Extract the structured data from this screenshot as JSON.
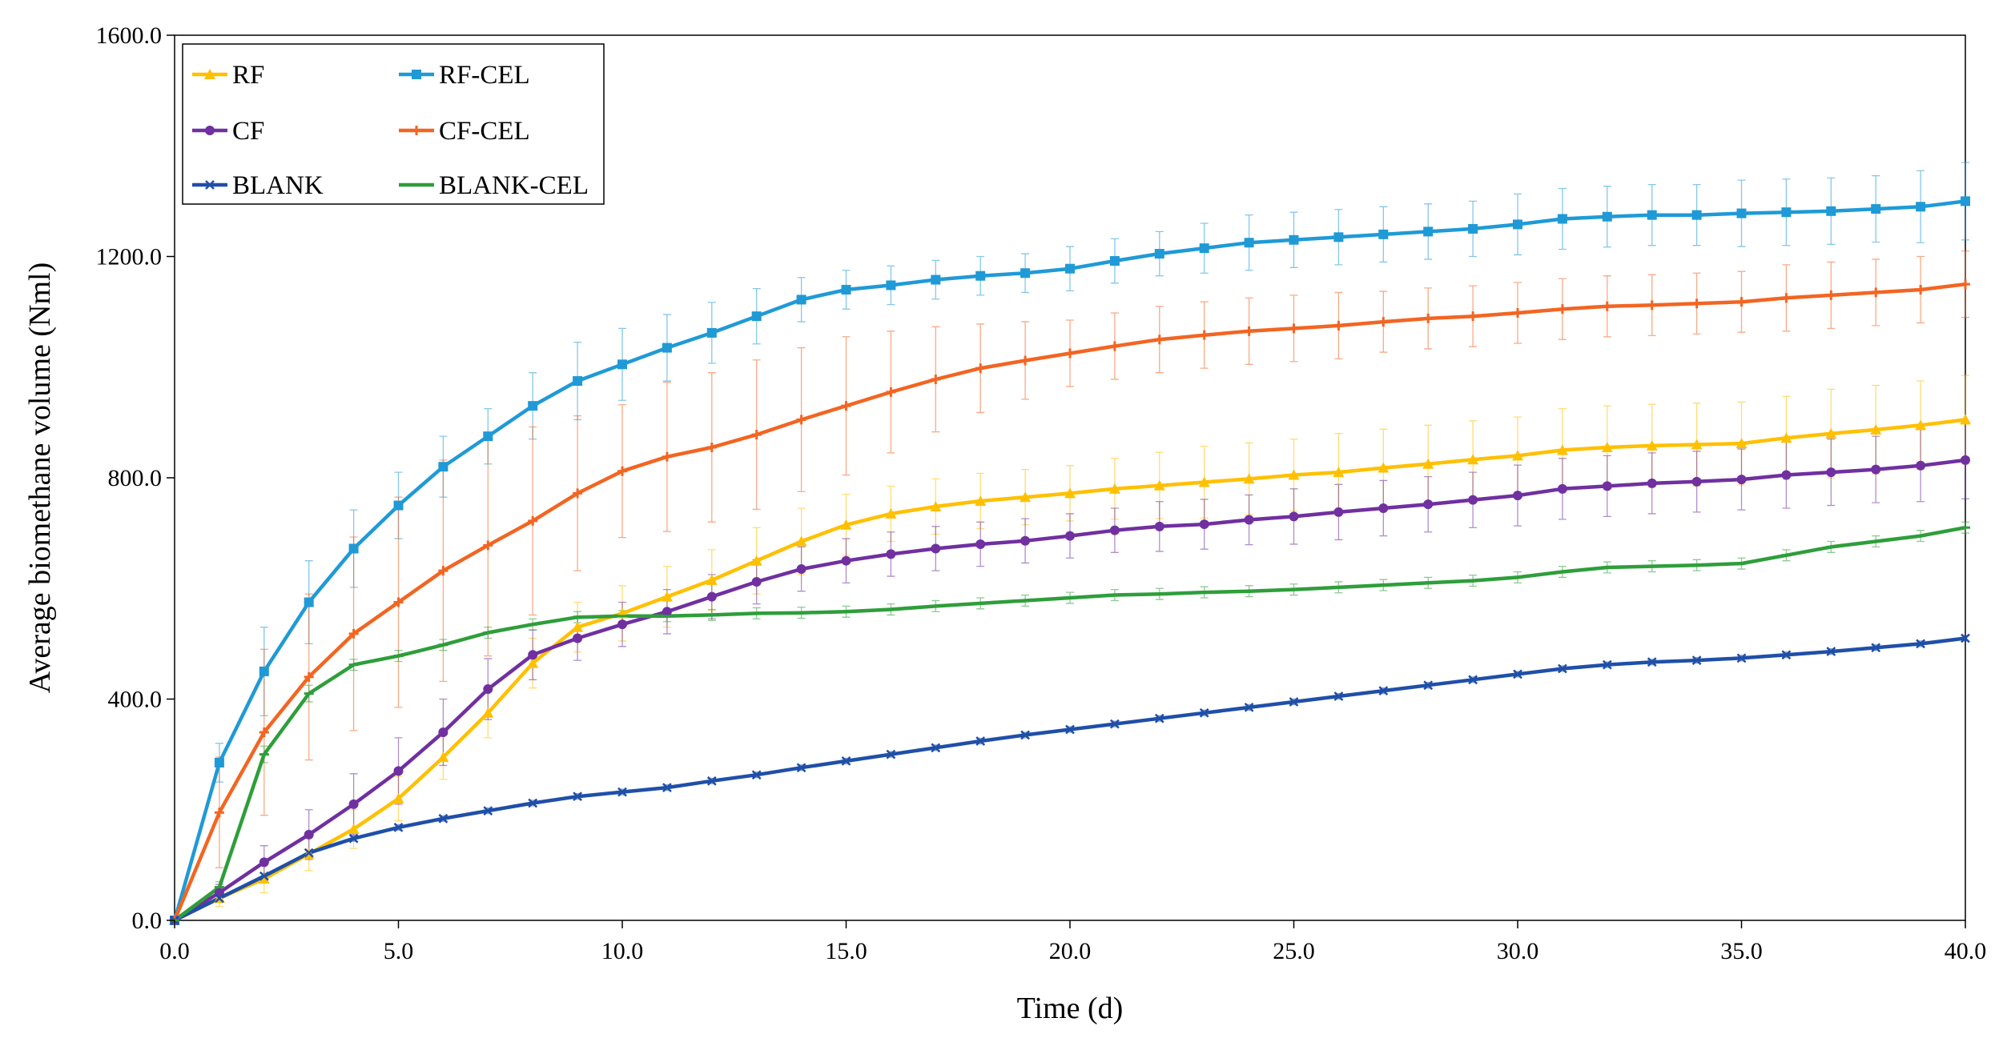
{
  "chart_data": {
    "type": "line",
    "title": "",
    "xlabel": "Time (d)",
    "ylabel": "Average biomethane volume (Nml)",
    "xlim": [
      0,
      40
    ],
    "ylim": [
      0,
      1600
    ],
    "xticks": [
      0,
      5,
      10,
      15,
      20,
      25,
      30,
      35,
      40
    ],
    "yticks": [
      0,
      400,
      800,
      1200,
      1600
    ],
    "xtick_labels": [
      "0.0",
      "5.0",
      "10.0",
      "15.0",
      "20.0",
      "25.0",
      "30.0",
      "35.0",
      "40.0"
    ],
    "ytick_labels": [
      "0.0",
      "400.0",
      "800.0",
      "1200.0",
      "1600.0"
    ],
    "grid": false,
    "legend_position": "top-left",
    "x": [
      0,
      1,
      2,
      3,
      4,
      5,
      6,
      7,
      8,
      9,
      10,
      11,
      12,
      13,
      14,
      15,
      16,
      17,
      18,
      19,
      20,
      21,
      22,
      23,
      24,
      25,
      26,
      27,
      28,
      29,
      30,
      31,
      32,
      33,
      34,
      35,
      36,
      37,
      38,
      39,
      40
    ],
    "series": [
      {
        "name": "RF",
        "color": "#FFC000",
        "marker": "triangle",
        "values": [
          0,
          40,
          75,
          120,
          165,
          220,
          295,
          375,
          465,
          530,
          555,
          585,
          615,
          650,
          685,
          715,
          735,
          748,
          758,
          765,
          772,
          780,
          786,
          792,
          798,
          805,
          810,
          818,
          825,
          833,
          840,
          850,
          855,
          858,
          860,
          862,
          872,
          880,
          887,
          895,
          905
        ],
        "errors": [
          0,
          15,
          25,
          30,
          35,
          40,
          40,
          45,
          45,
          45,
          50,
          55,
          55,
          60,
          60,
          55,
          50,
          50,
          50,
          50,
          50,
          55,
          60,
          65,
          65,
          65,
          70,
          70,
          70,
          70,
          70,
          75,
          75,
          75,
          75,
          75,
          75,
          80,
          80,
          80,
          80
        ]
      },
      {
        "name": "RF-CEL",
        "color": "#1F9AD6",
        "marker": "square",
        "values": [
          0,
          285,
          450,
          575,
          672,
          750,
          820,
          875,
          930,
          975,
          1005,
          1035,
          1062,
          1092,
          1122,
          1140,
          1148,
          1158,
          1165,
          1170,
          1178,
          1192,
          1205,
          1215,
          1225,
          1230,
          1235,
          1240,
          1245,
          1250,
          1258,
          1268,
          1272,
          1275,
          1275,
          1278,
          1280,
          1282,
          1286,
          1290,
          1300
        ],
        "errors": [
          0,
          35,
          80,
          75,
          70,
          60,
          55,
          50,
          60,
          70,
          65,
          60,
          55,
          50,
          40,
          35,
          35,
          35,
          35,
          35,
          40,
          40,
          40,
          45,
          50,
          50,
          50,
          50,
          50,
          50,
          55,
          55,
          55,
          55,
          55,
          60,
          60,
          60,
          60,
          65,
          70
        ]
      },
      {
        "name": "CF",
        "color": "#7030A0",
        "marker": "circle",
        "values": [
          0,
          50,
          105,
          155,
          210,
          270,
          340,
          418,
          480,
          510,
          535,
          558,
          585,
          612,
          635,
          650,
          662,
          672,
          680,
          686,
          695,
          705,
          712,
          716,
          724,
          730,
          738,
          745,
          752,
          760,
          768,
          780,
          785,
          790,
          793,
          797,
          805,
          810,
          815,
          822,
          832
        ],
        "errors": [
          0,
          15,
          30,
          45,
          55,
          60,
          60,
          55,
          45,
          40,
          40,
          40,
          40,
          40,
          40,
          40,
          40,
          40,
          40,
          40,
          40,
          40,
          45,
          45,
          45,
          50,
          50,
          50,
          50,
          50,
          55,
          55,
          55,
          55,
          55,
          55,
          60,
          60,
          60,
          65,
          70
        ]
      },
      {
        "name": "CF-CEL",
        "color": "#F26522",
        "marker": "plus",
        "values": [
          0,
          195,
          340,
          440,
          518,
          575,
          632,
          678,
          722,
          772,
          812,
          838,
          855,
          878,
          905,
          930,
          955,
          978,
          998,
          1012,
          1025,
          1038,
          1050,
          1058,
          1065,
          1070,
          1075,
          1082,
          1088,
          1092,
          1098,
          1105,
          1110,
          1112,
          1115,
          1118,
          1125,
          1130,
          1135,
          1140,
          1150
        ],
        "errors": [
          0,
          100,
          150,
          150,
          175,
          190,
          200,
          200,
          170,
          140,
          120,
          135,
          135,
          135,
          130,
          125,
          110,
          95,
          80,
          70,
          60,
          60,
          60,
          60,
          60,
          60,
          60,
          55,
          55,
          55,
          55,
          55,
          55,
          55,
          55,
          55,
          60,
          60,
          60,
          60,
          60
        ]
      },
      {
        "name": "BLANK",
        "color": "#1F4FA8",
        "marker": "x",
        "values": [
          0,
          40,
          80,
          122,
          148,
          168,
          184,
          198,
          212,
          224,
          232,
          240,
          252,
          263,
          276,
          288,
          300,
          312,
          324,
          335,
          345,
          355,
          365,
          375,
          385,
          395,
          405,
          415,
          425,
          435,
          445,
          455,
          462,
          467,
          470,
          474,
          480,
          486,
          493,
          500,
          510
        ],
        "errors": [
          0,
          5,
          5,
          5,
          5,
          5,
          5,
          5,
          5,
          5,
          5,
          5,
          5,
          5,
          5,
          5,
          5,
          5,
          5,
          5,
          5,
          5,
          5,
          5,
          5,
          5,
          5,
          5,
          5,
          5,
          5,
          5,
          5,
          5,
          5,
          5,
          5,
          5,
          5,
          5,
          5
        ]
      },
      {
        "name": "BLANK-CEL",
        "color": "#2E9E3A",
        "marker": "dash",
        "values": [
          0,
          60,
          300,
          410,
          462,
          478,
          498,
          520,
          535,
          548,
          550,
          550,
          552,
          555,
          556,
          558,
          562,
          568,
          573,
          578,
          583,
          588,
          590,
          593,
          595,
          598,
          602,
          606,
          610,
          614,
          620,
          630,
          638,
          640,
          642,
          645,
          660,
          675,
          685,
          695,
          710
        ],
        "errors": [
          0,
          10,
          15,
          15,
          10,
          10,
          10,
          10,
          10,
          10,
          10,
          10,
          10,
          10,
          10,
          10,
          10,
          10,
          10,
          10,
          10,
          10,
          10,
          10,
          10,
          10,
          10,
          10,
          10,
          10,
          10,
          10,
          10,
          10,
          10,
          10,
          10,
          10,
          10,
          10,
          10
        ]
      }
    ]
  }
}
